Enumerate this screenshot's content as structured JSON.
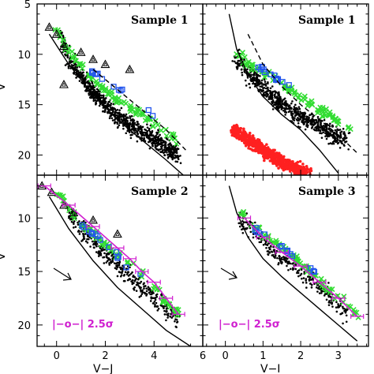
{
  "chart_data": [
    {
      "panel": "top-left",
      "type": "scatter",
      "title": "Sample 1",
      "xlabel": "V−J",
      "ylabel": "V",
      "xlim": [
        -0.8,
        6.0
      ],
      "ylim": [
        22,
        5
      ],
      "x_ticks": [
        "0",
        "2",
        "4"
      ],
      "y_ticks": [
        "5",
        "10",
        "15",
        "20"
      ],
      "series": [
        {
          "marker": "black-dots",
          "x": [
            0.2,
            0.5,
            1.0,
            1.4,
            2.0,
            2.5,
            3.0,
            3.5,
            4.0,
            4.5,
            5.0
          ],
          "y": [
            8.5,
            10.5,
            12.0,
            13.5,
            15.0,
            16.2,
            17.0,
            17.8,
            18.5,
            19.2,
            20.0
          ]
        },
        {
          "marker": "green-cross",
          "x": [
            0.0,
            0.4,
            1.0,
            1.5,
            2.0,
            2.5,
            3.0,
            3.5,
            4.0,
            4.5,
            5.0
          ],
          "y": [
            7.5,
            9.5,
            11.0,
            12.5,
            13.5,
            14.5,
            15.3,
            16.0,
            17.0,
            17.8,
            18.5
          ]
        },
        {
          "marker": "blue-square",
          "x": [
            1.2,
            1.6,
            2.0,
            2.5,
            3.0,
            3.5,
            4.0
          ],
          "y": [
            11.0,
            12.0,
            12.5,
            13.5,
            14.0,
            15.0,
            16.0
          ]
        },
        {
          "marker": "open-triangle",
          "x": [
            -0.3,
            0.0,
            0.3,
            1.0,
            1.5,
            2.0,
            3.0,
            0.3
          ],
          "y": [
            7.3,
            8.0,
            9.2,
            9.8,
            10.5,
            11.0,
            11.5,
            13.0
          ]
        }
      ],
      "lines": [
        {
          "style": "solid",
          "x": [
            -0.3,
            0.5,
            1.5,
            2.5,
            3.5,
            4.5,
            5.2
          ],
          "y": [
            8.0,
            11.0,
            14.0,
            16.5,
            18.5,
            20.5,
            22.0
          ]
        },
        {
          "style": "dashed",
          "x": [
            1.5,
            2.5,
            3.5,
            4.5,
            5.3
          ],
          "y": [
            11.5,
            13.5,
            15.5,
            17.5,
            19.5
          ]
        }
      ]
    },
    {
      "panel": "top-right",
      "type": "scatter",
      "title": "Sample 1",
      "xlabel": "V−I",
      "ylabel": "",
      "xlim": [
        -0.6,
        3.8
      ],
      "ylim": [
        22,
        5
      ],
      "x_ticks": [
        "0",
        "1",
        "2",
        "3"
      ],
      "series": [
        {
          "marker": "black-dots",
          "x": [
            0.3,
            0.8,
            1.2,
            1.6,
            2.0,
            2.4,
            2.8,
            3.2
          ],
          "y": [
            10.5,
            12.5,
            14.0,
            15.2,
            16.2,
            17.0,
            17.8,
            18.5
          ]
        },
        {
          "marker": "red-dots",
          "x": [
            0.2,
            0.6,
            1.0,
            1.4,
            1.8,
            2.2
          ],
          "y": [
            17.5,
            18.5,
            19.5,
            20.5,
            21.2,
            21.8
          ]
        },
        {
          "marker": "green-cross",
          "x": [
            0.3,
            0.8,
            1.3,
            1.8,
            2.3,
            2.8,
            3.3
          ],
          "y": [
            10.0,
            11.5,
            12.5,
            13.8,
            15.0,
            16.2,
            17.5
          ]
        },
        {
          "marker": "blue-square",
          "x": [
            0.8,
            1.2,
            1.6,
            2.0
          ],
          "y": [
            11.0,
            12.0,
            13.0,
            14.0
          ]
        }
      ],
      "lines": [
        {
          "style": "solid",
          "x": [
            0.1,
            0.3,
            0.6,
            1.0,
            1.5,
            2.0,
            2.5,
            3.0
          ],
          "y": [
            6.0,
            9.5,
            12.0,
            14.2,
            16.0,
            17.5,
            19.5,
            21.8
          ]
        },
        {
          "style": "dashed",
          "x": [
            0.6,
            1.0,
            1.5,
            2.0,
            2.5,
            3.0,
            3.5
          ],
          "y": [
            8.0,
            11.0,
            13.2,
            15.0,
            16.5,
            18.0,
            19.8
          ]
        }
      ]
    },
    {
      "panel": "bottom-left",
      "type": "scatter",
      "title": "Sample 2",
      "xlabel": "V−J",
      "ylabel": "V",
      "xlim": [
        -0.8,
        6.0
      ],
      "ylim": [
        22,
        6
      ],
      "x_ticks": [
        "0",
        "2",
        "4",
        "6"
      ],
      "y_ticks": [
        "10",
        "15",
        "20"
      ],
      "legend": "|−o−| 2.5σ",
      "series": [
        {
          "marker": "black-dots",
          "x": [
            0.5,
            1.0,
            1.5,
            2.0,
            2.5,
            3.0,
            3.5,
            4.0,
            4.5,
            5.0
          ],
          "y": [
            9.5,
            11.0,
            12.2,
            13.5,
            14.5,
            15.5,
            16.5,
            17.5,
            18.5,
            19.5
          ]
        },
        {
          "marker": "green-cross",
          "x": [
            0.0,
            0.5,
            1.0,
            1.5,
            2.0,
            2.5,
            3.0,
            3.5,
            4.0,
            4.5,
            5.0
          ],
          "y": [
            7.5,
            9.0,
            10.5,
            11.5,
            12.5,
            13.5,
            14.2,
            15.2,
            16.5,
            17.8,
            19.0
          ]
        },
        {
          "marker": "blue-square",
          "x": [
            1.0,
            1.5,
            2.0,
            2.5,
            3.0,
            3.5
          ],
          "y": [
            10.5,
            11.5,
            12.5,
            13.5,
            14.5,
            15.5
          ]
        },
        {
          "marker": "open-triangle",
          "x": [
            -0.6,
            -0.2,
            0.3,
            0.7,
            1.5,
            2.5
          ],
          "y": [
            7.0,
            7.6,
            8.8,
            9.5,
            10.2,
            11.5
          ]
        }
      ],
      "lines": [
        {
          "style": "solid",
          "x": [
            -0.3,
            0.5,
            1.5,
            2.5,
            3.5,
            4.5,
            5.5
          ],
          "y": [
            8.0,
            11.0,
            14.0,
            16.5,
            18.5,
            20.5,
            22.0
          ]
        },
        {
          "style": "fit",
          "x": [
            -0.5,
            0.5,
            1.5,
            2.5,
            3.0,
            3.5,
            4.0,
            4.5,
            5.0
          ],
          "y": [
            7.0,
            8.8,
            10.8,
            12.8,
            13.8,
            15.0,
            16.0,
            17.5,
            19.0
          ]
        }
      ]
    },
    {
      "panel": "bottom-right",
      "type": "scatter",
      "title": "Sample 3",
      "xlabel": "V−I",
      "ylabel": "",
      "xlim": [
        -0.6,
        3.8
      ],
      "ylim": [
        22,
        6
      ],
      "x_ticks": [
        "0",
        "1",
        "2",
        "3"
      ],
      "legend": "|−o−| 2.5σ",
      "series": [
        {
          "marker": "black-dots",
          "x": [
            0.4,
            0.8,
            1.2,
            1.6,
            2.0,
            2.4,
            2.8,
            3.2
          ],
          "y": [
            10.0,
            11.5,
            12.8,
            14.0,
            15.0,
            16.2,
            17.5,
            19.0
          ]
        },
        {
          "marker": "green-cross",
          "x": [
            0.4,
            0.8,
            1.2,
            1.6,
            2.0,
            2.4,
            2.8,
            3.2,
            3.5
          ],
          "y": [
            9.5,
            11.0,
            12.0,
            13.0,
            14.2,
            15.5,
            16.8,
            18.0,
            19.0
          ]
        },
        {
          "marker": "blue-square",
          "x": [
            0.8,
            1.2,
            1.6,
            2.0,
            2.4
          ],
          "y": [
            11.0,
            12.0,
            13.0,
            14.0,
            15.0
          ]
        }
      ],
      "lines": [
        {
          "style": "solid",
          "x": [
            0.1,
            0.3,
            0.6,
            1.0,
            1.5,
            2.0,
            2.5,
            3.0,
            3.5
          ],
          "y": [
            7.0,
            9.5,
            11.8,
            13.8,
            15.5,
            17.0,
            18.5,
            20.0,
            21.5
          ]
        },
        {
          "style": "fit",
          "x": [
            0.5,
            1.0,
            1.5,
            2.0,
            2.5,
            3.0,
            3.5
          ],
          "y": [
            10.0,
            11.8,
            13.2,
            14.5,
            16.0,
            17.5,
            19.2
          ]
        }
      ]
    }
  ]
}
